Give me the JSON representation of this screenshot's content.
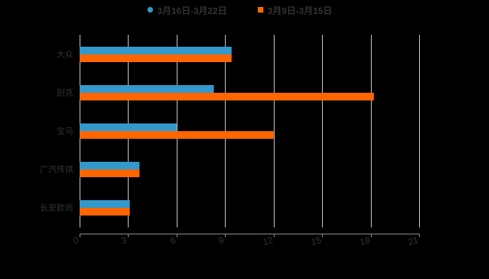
{
  "legend": {
    "items": [
      {
        "label": "3月16日-3月22日",
        "color": "#3399cc",
        "marker": "circle"
      },
      {
        "label": "3月9日-3月15日",
        "color": "#ff6600",
        "marker": "square"
      }
    ]
  },
  "colors": {
    "background": "#000000",
    "gridline": "#d9d9d9",
    "axis": "#999999",
    "text": "#333333"
  },
  "chart_data": {
    "type": "bar",
    "orientation": "horizontal",
    "title": "",
    "xlabel": "",
    "ylabel": "",
    "categories": [
      "大众",
      "别克",
      "宝马",
      "广汽传祺",
      "长安欧尚"
    ],
    "series": [
      {
        "name": "3月16日-3月22日",
        "color": "#3399cc",
        "values": [
          9.4,
          8.3,
          6.0,
          3.7,
          3.1
        ]
      },
      {
        "name": "3月9日-3月15日",
        "color": "#ff6600",
        "values": [
          9.4,
          18.2,
          12.0,
          3.7,
          3.1
        ]
      }
    ],
    "xlim": [
      0,
      21
    ],
    "xticks": [
      0,
      3,
      6,
      9,
      12,
      15,
      18,
      21
    ],
    "grid": true,
    "legend_position": "top"
  }
}
